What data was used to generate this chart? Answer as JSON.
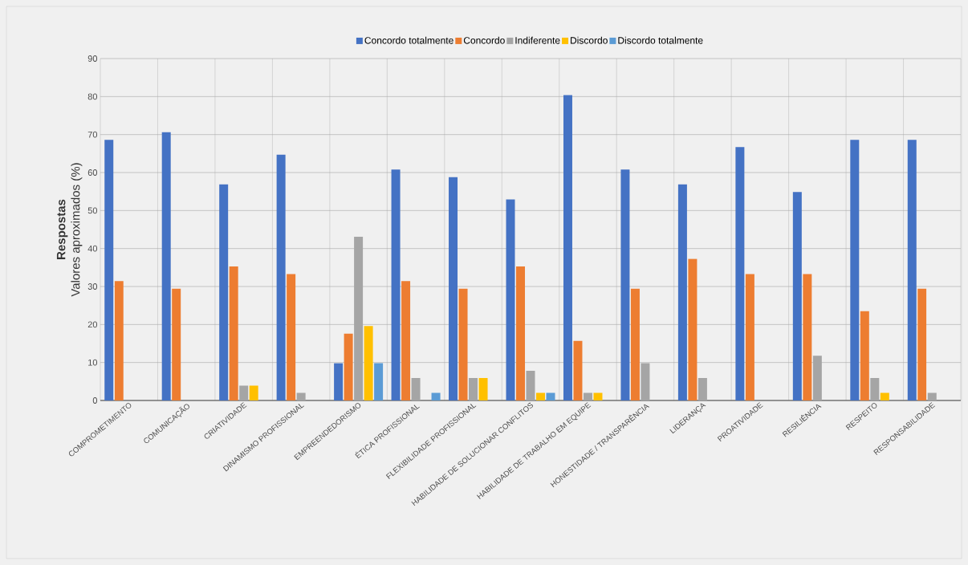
{
  "chart_data": {
    "type": "bar",
    "ylabel": "**Respostas**\nValores aproximados (%)",
    "categories": [
      "COMPROMETIMENTO",
      "COMUNICAÇÃO",
      "CRIATIVIDADE",
      "DINAMISMO PROFISSIONAL",
      "EMPREENDEDORISMO",
      "ÉTICA PROFISSIONAL",
      "FLEXIBILIDADE PROFISSIONAL",
      "HABILIDADE DE SOLUCIONAR CONFLITOS",
      "HABILIDADE DE TRABALHO EM EQUIPE",
      "HONESTIDADE / TRANSPARÊNCIA",
      "LIDERANÇA",
      "PROATIVIDADE",
      "RESILIÊNCIA",
      "RESPEITO",
      "RESPONSABILIDADE"
    ],
    "series": [
      {
        "name": "Concordo totalmente",
        "color": "#4472c4",
        "values": [
          68.6,
          70.6,
          56.9,
          64.7,
          9.8,
          60.8,
          58.8,
          52.9,
          80.4,
          60.8,
          56.9,
          66.7,
          54.9,
          68.6,
          68.6
        ]
      },
      {
        "name": "Concordo",
        "color": "#ed7d31",
        "values": [
          31.4,
          29.4,
          35.3,
          33.3,
          17.6,
          31.4,
          29.4,
          35.3,
          15.7,
          29.4,
          37.3,
          33.3,
          33.3,
          23.5,
          29.4
        ]
      },
      {
        "name": "Indiferente",
        "color": "#a5a5a5",
        "values": [
          0,
          0,
          3.9,
          2.0,
          43.1,
          5.9,
          5.9,
          7.8,
          2.0,
          9.8,
          5.9,
          0,
          11.8,
          5.9,
          2.0
        ]
      },
      {
        "name": "Discordo",
        "color": "#ffc000",
        "values": [
          0,
          0,
          3.9,
          0,
          19.6,
          0,
          5.9,
          2.0,
          2.0,
          0,
          0,
          0,
          0,
          2.0,
          0
        ]
      },
      {
        "name": "Discordo totalmente",
        "color": "#5b9bd5",
        "values": [
          0,
          0,
          0,
          0,
          9.8,
          2.0,
          0,
          2.0,
          0,
          0,
          0,
          0,
          0,
          0,
          0
        ]
      }
    ],
    "ylim": [
      0,
      90
    ],
    "yticks": [
      0,
      10,
      20,
      30,
      40,
      50,
      60,
      70,
      80,
      90
    ],
    "grid": true,
    "legend": "top"
  }
}
